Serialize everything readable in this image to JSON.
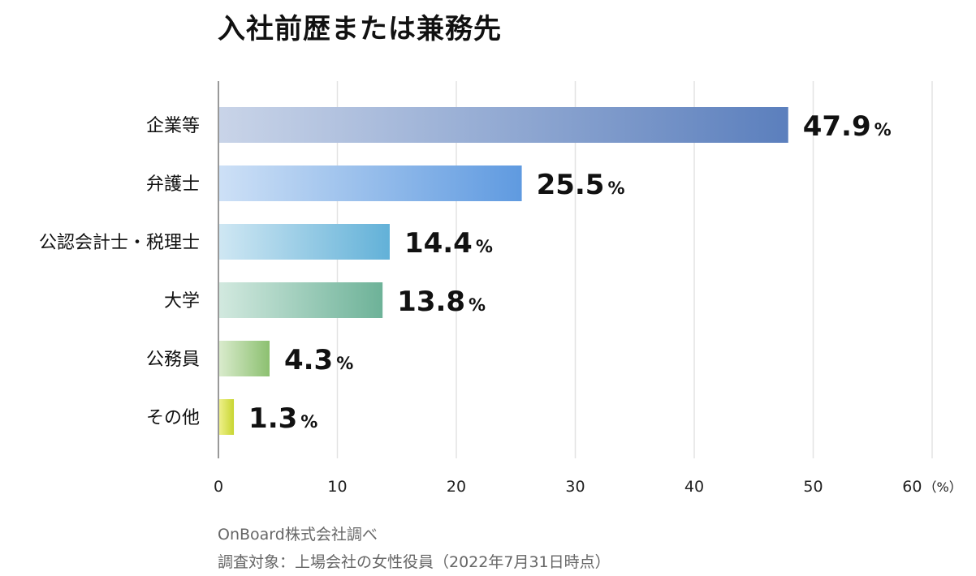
{
  "chart_data": {
    "type": "bar",
    "orientation": "horizontal",
    "title": "入社前歴または兼務先",
    "categories": [
      "企業等",
      "弁護士",
      "公認会計士・税理士",
      "大学",
      "公務員",
      "その他"
    ],
    "values": [
      47.9,
      25.5,
      14.4,
      13.8,
      4.3,
      1.3
    ],
    "value_suffix": "%",
    "xlim": [
      0,
      60
    ],
    "xticks": [
      "0",
      "10",
      "20",
      "30",
      "40",
      "50",
      "60"
    ],
    "x_unit": "（%）",
    "grid": true,
    "colors": [
      [
        "#c9d4e8",
        "#5b7fbd"
      ],
      [
        "#cde0f6",
        "#5f9ae0"
      ],
      [
        "#cfe7f3",
        "#62b1d8"
      ],
      [
        "#d2e9df",
        "#6db298"
      ],
      [
        "#d9ebcc",
        "#8cc070"
      ],
      [
        "#eef089",
        "#c9d632"
      ]
    ]
  },
  "footer": {
    "source": "OnBoard株式会社調べ",
    "note": "調査対象：上場会社の女性役員（2022年7月31日時点）"
  }
}
